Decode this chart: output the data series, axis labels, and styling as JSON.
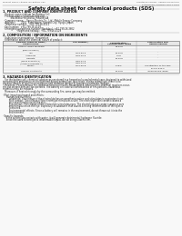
{
  "bg_color": "#f8f8f8",
  "header_left": "Product Name: Lithium Ion Battery Cell",
  "header_right_line1": "Substance number: UPRNS-6100RA2C9",
  "header_right_line2": "Established / Revision: Dec.7.2009",
  "title": "Safety data sheet for chemical products (SDS)",
  "section1_title": "1. PRODUCT AND COMPANY IDENTIFICATION",
  "section1_items": [
    "· Product name: Lithium Ion Battery Cell",
    "· Product code: Cylindrical-type cell",
    "          SN186560, SN18650L, SN18650A",
    "· Company name:    Sanyo Electric Co., Ltd., Mobile Energy Company",
    "· Address:         2001  Kamikaizen, Sumoto City, Hyogo, Japan",
    "· Telephone number:   +81-799-26-4111",
    "· Fax number:  +81-799-26-4129",
    "· Emergency telephone number (Weekday): +81-799-26-3662",
    "                    (Night and holiday): +81-799-26-4129"
  ],
  "section2_title": "2. COMPOSITION / INFORMATION ON INGREDIENTS",
  "section2_items": [
    "· Substance or preparation: Preparation",
    "· Information about the chemical nature of product:"
  ],
  "table_col_headers": [
    "Common chemical name /",
    "CAS number /",
    "Concentration /",
    "Classification and"
  ],
  "table_col_headers2": [
    "Several name",
    "",
    "Concentration range",
    "hazard labeling"
  ],
  "table_rows": [
    [
      "Lithium cobalt-tantalate",
      "-",
      "30-60%",
      "-"
    ],
    [
      "(LiMn-Co-PbO4)",
      "",
      "",
      ""
    ],
    [
      "Iron",
      "7439-89-6",
      "15-25%",
      "-"
    ],
    [
      "Aluminum",
      "7429-90-5",
      "2-6%",
      "-"
    ],
    [
      "Graphite",
      "",
      "10-25%",
      "-"
    ],
    [
      "(Meso graphite-1)",
      "7782-42-5",
      "",
      ""
    ],
    [
      "(Artificial graphite-1)",
      "7782-42-5",
      "",
      ""
    ],
    [
      "Copper",
      "7440-50-8",
      "5-15%",
      "Sensitization of the skin"
    ],
    [
      "",
      "",
      "",
      "group R43.2"
    ],
    [
      "Organic electrolyte",
      "-",
      "10-20%",
      "Inflammable liquid"
    ]
  ],
  "section3_title": "3. HAZARDS IDENTIFICATION",
  "section3_lines": [
    "   For the battery cell, chemical substances are stored in a hermetically sealed metal case, designed to withstand",
    "temperatures and pressures encountered during normal use. As a result, during normal use, there is no",
    "physical danger of ignition or explosion and therefore danger of hazardous materials leakage.",
    "   However, if exposed to a fire, added mechanical shocks, decomposed, when electro-chemical reactions occur,",
    "the gas release vent will be operated. The battery cell case will be breached of fire-particles, hazardous",
    "materials may be released.",
    "   Moreover, if heated strongly by the surrounding fire, some gas may be emitted.",
    "",
    "· Most important hazard and effects:",
    "     Human health effects:",
    "         Inhalation: The release of the electrolyte has an anesthesia action and stimulates is respiratory tract.",
    "         Skin contact: The release of the electrolyte stimulates a skin. The electrolyte skin contact causes a",
    "         sore and stimulation on the skin.",
    "         Eye contact: The release of the electrolyte stimulates eyes. The electrolyte eye contact causes a sore",
    "         and stimulation on the eye. Especially, a substance that causes a strong inflammation of the eyes is",
    "         contained.",
    "         Environmental effects: Since a battery cell remains in the environment, do not throw out it into the",
    "         environment.",
    "",
    "· Specific hazards:",
    "     If the electrolyte contacts with water, it will generate detrimental hydrogen fluoride.",
    "     Since the used electrolyte is inflammable liquid, do not bring close to fire."
  ]
}
